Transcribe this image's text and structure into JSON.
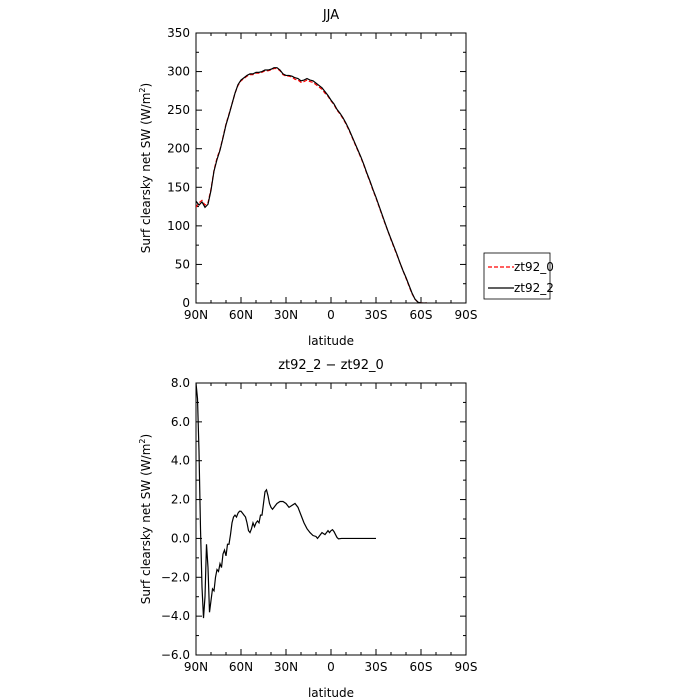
{
  "chart_data": [
    {
      "type": "line",
      "title": "JJA",
      "xlabel": "latitude",
      "ylabel": "Surf clearsky net SW (W/m²)",
      "ylabel_main": "Surf clearsky net SW (W/m",
      "ylabel_sup": "2",
      "ylabel_end": ")",
      "xlim": [
        90,
        -90
      ],
      "ylim": [
        0,
        350
      ],
      "xticks": [
        90,
        60,
        30,
        0,
        -30,
        -60,
        -90
      ],
      "xtick_labels": [
        "90N",
        "60N",
        "30N",
        "0",
        "30S",
        "60S",
        "90S"
      ],
      "yticks": [
        0,
        50,
        100,
        150,
        200,
        250,
        300,
        350
      ],
      "ytick_labels": [
        "0",
        "50",
        "100",
        "150",
        "200",
        "250",
        "300",
        "350"
      ],
      "legend": {
        "placement": "right"
      },
      "series": [
        {
          "name": "zt92_0",
          "color": "#ff0000",
          "dash": "dashed",
          "points": [
            [
              90,
              124
            ],
            [
              88,
              130
            ],
            [
              86,
              133
            ],
            [
              84,
              127
            ],
            [
              82,
              130
            ],
            [
              80,
              148
            ],
            [
              78,
              172
            ],
            [
              76,
              188
            ],
            [
              74,
              199
            ],
            [
              72,
              215
            ],
            [
              70,
              232
            ],
            [
              68,
              245
            ],
            [
              66,
              258
            ],
            [
              64,
              272
            ],
            [
              62,
              282
            ],
            [
              60,
              288
            ],
            [
              58,
              291
            ],
            [
              56,
              294
            ],
            [
              54,
              296
            ],
            [
              52,
              296
            ],
            [
              50,
              298
            ],
            [
              48,
              298
            ],
            [
              46,
              299
            ],
            [
              44,
              301
            ],
            [
              42,
              301
            ],
            [
              40,
              302
            ],
            [
              38,
              304
            ],
            [
              36,
              304
            ],
            [
              34,
              301
            ],
            [
              32,
              296
            ],
            [
              30,
              294
            ],
            [
              28,
              294
            ],
            [
              26,
              293
            ],
            [
              24,
              290
            ],
            [
              22,
              289
            ],
            [
              20,
              286
            ],
            [
              18,
              287
            ],
            [
              16,
              289
            ],
            [
              14,
              287
            ],
            [
              12,
              286
            ],
            [
              10,
              283
            ],
            [
              8,
              280
            ],
            [
              6,
              277
            ],
            [
              4,
              272
            ],
            [
              2,
              268
            ],
            [
              0,
              262
            ],
            [
              -2,
              257
            ],
            [
              -4,
              250
            ],
            [
              -6,
              245
            ],
            [
              -8,
              239
            ],
            [
              -10,
              232
            ],
            [
              -12,
              224
            ],
            [
              -14,
              215
            ],
            [
              -16,
              206
            ],
            [
              -18,
              197
            ],
            [
              -20,
              188
            ],
            [
              -22,
              178
            ],
            [
              -24,
              167
            ],
            [
              -26,
              157
            ],
            [
              -28,
              146
            ],
            [
              -30,
              136
            ],
            [
              -32,
              125
            ],
            [
              -34,
              114
            ],
            [
              -36,
              103
            ],
            [
              -38,
              93
            ],
            [
              -40,
              82
            ],
            [
              -42,
              72
            ],
            [
              -44,
              62
            ],
            [
              -46,
              52
            ],
            [
              -48,
              42
            ],
            [
              -50,
              32
            ],
            [
              -52,
              22
            ],
            [
              -54,
              12
            ],
            [
              -56,
              5
            ],
            [
              -58,
              1
            ],
            [
              -60,
              0
            ],
            [
              -62,
              0
            ],
            [
              -64,
              0
            ]
          ]
        },
        {
          "name": "zt92_2",
          "color": "#000000",
          "dash": "solid",
          "points": [
            [
              90,
              132
            ],
            [
              88,
              127
            ],
            [
              86,
              131
            ],
            [
              84,
              124
            ],
            [
              82,
              128
            ],
            [
              80,
              146
            ],
            [
              78,
              171
            ],
            [
              76,
              186
            ],
            [
              74,
              198
            ],
            [
              72,
              214
            ],
            [
              70,
              231
            ],
            [
              68,
              244
            ],
            [
              66,
              258
            ],
            [
              64,
              272
            ],
            [
              62,
              283
            ],
            [
              60,
              289
            ],
            [
              58,
              292
            ],
            [
              56,
              295
            ],
            [
              54,
              297
            ],
            [
              52,
              297
            ],
            [
              50,
              299
            ],
            [
              48,
              299
            ],
            [
              46,
              300
            ],
            [
              44,
              302
            ],
            [
              42,
              302
            ],
            [
              40,
              303
            ],
            [
              38,
              305
            ],
            [
              36,
              305
            ],
            [
              34,
              302
            ],
            [
              32,
              297
            ],
            [
              30,
              295
            ],
            [
              28,
              295
            ],
            [
              26,
              294
            ],
            [
              24,
              292
            ],
            [
              22,
              291
            ],
            [
              20,
              288
            ],
            [
              18,
              289
            ],
            [
              16,
              291
            ],
            [
              14,
              289
            ],
            [
              12,
              288
            ],
            [
              10,
              285
            ],
            [
              8,
              282
            ],
            [
              6,
              279
            ],
            [
              4,
              274
            ],
            [
              2,
              269
            ],
            [
              0,
              263
            ],
            [
              -2,
              258
            ],
            [
              -4,
              251
            ],
            [
              -6,
              246
            ],
            [
              -8,
              240
            ],
            [
              -10,
              233
            ],
            [
              -12,
              225
            ],
            [
              -14,
              216
            ],
            [
              -16,
              207
            ],
            [
              -18,
              198
            ],
            [
              -20,
              189
            ],
            [
              -22,
              179
            ],
            [
              -24,
              168
            ],
            [
              -26,
              158
            ],
            [
              -28,
              147
            ],
            [
              -30,
              137
            ],
            [
              -32,
              126
            ],
            [
              -34,
              115
            ],
            [
              -36,
              104
            ],
            [
              -38,
              93
            ],
            [
              -40,
              83
            ],
            [
              -42,
              73
            ],
            [
              -44,
              63
            ],
            [
              -46,
              52
            ],
            [
              -48,
              42
            ],
            [
              -50,
              33
            ],
            [
              -52,
              23
            ],
            [
              -54,
              13
            ],
            [
              -56,
              5
            ],
            [
              -58,
              1
            ],
            [
              -60,
              0
            ],
            [
              -62,
              0
            ],
            [
              -64,
              0
            ]
          ]
        }
      ]
    },
    {
      "type": "line",
      "title": "zt92_2 − zt92_0",
      "xlabel": "latitude",
      "ylabel": "Surf clearsky net SW (W/m²)",
      "ylabel_main": "Surf clearsky net SW (W/m",
      "ylabel_sup": "2",
      "ylabel_end": ")",
      "xlim": [
        90,
        -90
      ],
      "ylim": [
        -6,
        8
      ],
      "xticks": [
        90,
        60,
        30,
        0,
        -30,
        -60,
        -90
      ],
      "xtick_labels": [
        "90N",
        "60N",
        "30N",
        "0",
        "30S",
        "60S",
        "90S"
      ],
      "yticks": [
        -6,
        -4,
        -2,
        0,
        2,
        4,
        6,
        8
      ],
      "ytick_labels": [
        "−6.0",
        "−4.0",
        "−2.0",
        "0.0",
        "2.0",
        "4.0",
        "6.0",
        "8.0"
      ],
      "series": [
        {
          "color": "#000000",
          "dash": "solid",
          "points": [
            [
              90,
              8.0
            ],
            [
              89,
              7.2
            ],
            [
              88,
              4.5
            ],
            [
              87,
              0.5
            ],
            [
              86,
              -2.5
            ],
            [
              85,
              -4.1
            ],
            [
              84,
              -3.0
            ],
            [
              83,
              -0.3
            ],
            [
              82,
              -1.5
            ],
            [
              81,
              -3.8
            ],
            [
              80,
              -3.2
            ],
            [
              79,
              -2.6
            ],
            [
              78,
              -2.7
            ],
            [
              77,
              -2.0
            ],
            [
              76,
              -1.6
            ],
            [
              75,
              -1.7
            ],
            [
              74,
              -1.3
            ],
            [
              73,
              -1.5
            ],
            [
              72,
              -0.8
            ],
            [
              71,
              -0.6
            ],
            [
              70,
              -0.9
            ],
            [
              69,
              -0.3
            ],
            [
              68,
              -0.3
            ],
            [
              67,
              0.2
            ],
            [
              66,
              0.8
            ],
            [
              65,
              1.1
            ],
            [
              64,
              1.2
            ],
            [
              63,
              1.1
            ],
            [
              62,
              1.3
            ],
            [
              61,
              1.4
            ],
            [
              60,
              1.4
            ],
            [
              59,
              1.3
            ],
            [
              58,
              1.2
            ],
            [
              57,
              1.1
            ],
            [
              56,
              0.8
            ],
            [
              55,
              0.4
            ],
            [
              54,
              0.3
            ],
            [
              53,
              0.5
            ],
            [
              52,
              0.8
            ],
            [
              51,
              0.6
            ],
            [
              50,
              0.8
            ],
            [
              49,
              0.9
            ],
            [
              48,
              0.8
            ],
            [
              47,
              1.2
            ],
            [
              46,
              1.2
            ],
            [
              45,
              1.8
            ],
            [
              44,
              2.4
            ],
            [
              43,
              2.5
            ],
            [
              42,
              2.2
            ],
            [
              41,
              1.8
            ],
            [
              40,
              1.6
            ],
            [
              39,
              1.5
            ],
            [
              38,
              1.6
            ],
            [
              37,
              1.7
            ],
            [
              36,
              1.8
            ],
            [
              34,
              1.9
            ],
            [
              32,
              1.9
            ],
            [
              30,
              1.8
            ],
            [
              28,
              1.6
            ],
            [
              26,
              1.7
            ],
            [
              24,
              1.8
            ],
            [
              22,
              1.6
            ],
            [
              20,
              1.2
            ],
            [
              18,
              0.8
            ],
            [
              16,
              0.5
            ],
            [
              14,
              0.3
            ],
            [
              12,
              0.15
            ],
            [
              10,
              0.1
            ],
            [
              9,
              0.0
            ],
            [
              8,
              0.1
            ],
            [
              7,
              0.2
            ],
            [
              6,
              0.3
            ],
            [
              5,
              0.25
            ],
            [
              4,
              0.2
            ],
            [
              3,
              0.3
            ],
            [
              2,
              0.4
            ],
            [
              1,
              0.3
            ],
            [
              0,
              0.4
            ],
            [
              -1,
              0.45
            ],
            [
              -2,
              0.35
            ],
            [
              -3,
              0.2
            ],
            [
              -4,
              0.05
            ],
            [
              -5,
              -0.02
            ],
            [
              -7,
              0.0
            ],
            [
              -10,
              0.0
            ],
            [
              -15,
              0.0
            ],
            [
              -20,
              0.0
            ],
            [
              -25,
              0.0
            ],
            [
              -30,
              0.0
            ]
          ]
        }
      ]
    }
  ]
}
